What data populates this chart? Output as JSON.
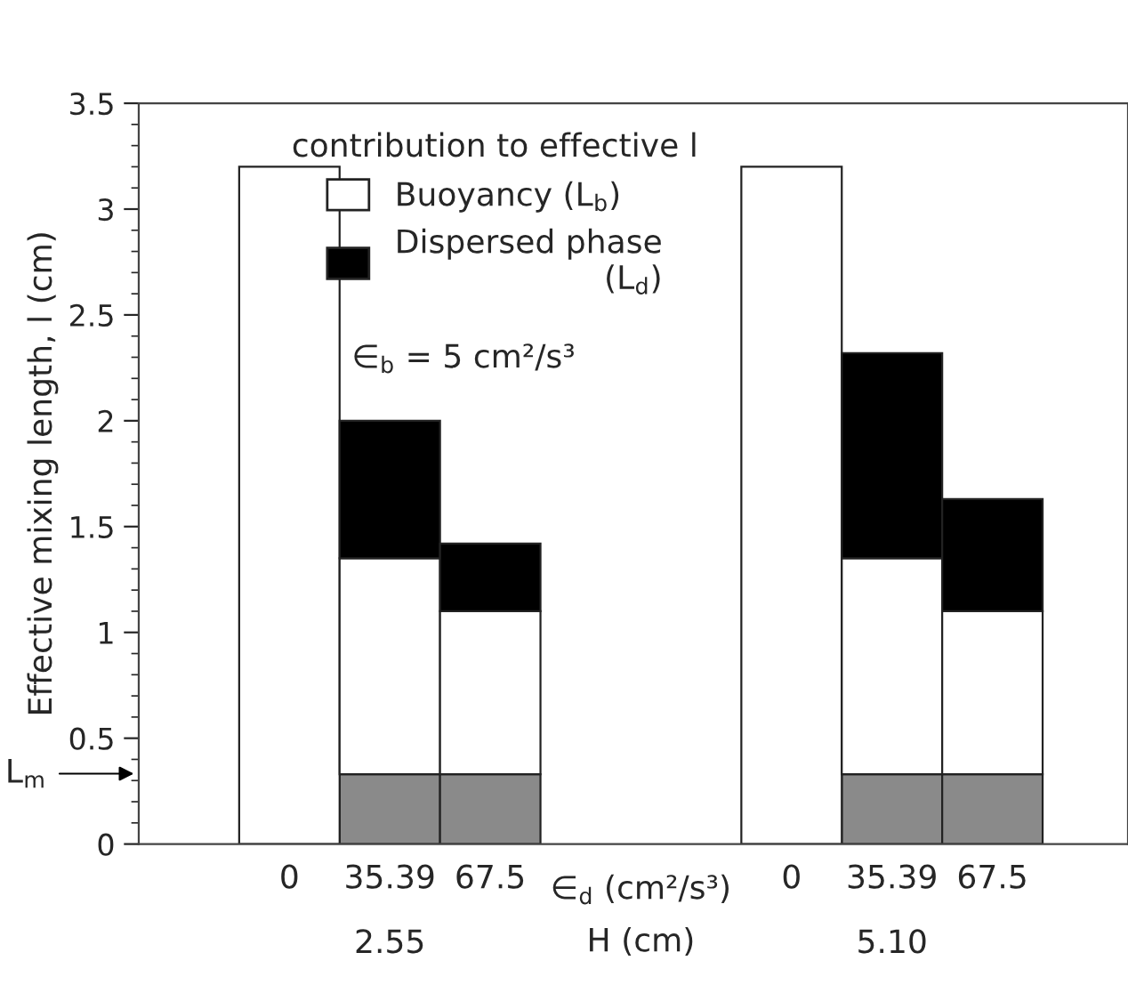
{
  "chart_data": {
    "type": "bar",
    "stacked": true,
    "ylabel": "Effective mixing length, l (cm)",
    "xlabel": "H (cm)",
    "legend_title": "contribution to effective l",
    "categories": [
      "0",
      "35.39",
      "67.5",
      null,
      null,
      "0",
      "35.39",
      "67.5"
    ],
    "series": [
      {
        "color": "#8a8a8a",
        "values": [
          null,
          0.33,
          0.33,
          null,
          null,
          null,
          0.33,
          0.33
        ]
      },
      {
        "name": "Buoyancy (L$_{b}$)",
        "color": "#ffffff",
        "values": [
          3.2,
          1.02,
          0.77,
          null,
          null,
          3.2,
          1.02,
          0.77
        ]
      },
      {
        "name": "Dispersed phase\n(L$_{d}$)",
        "color": "#000000",
        "values": [
          null,
          0.65,
          0.32,
          null,
          null,
          null,
          0.97,
          0.53
        ]
      }
    ],
    "ylim": [
      0,
      3.5
    ],
    "yticks": [
      0,
      0.5,
      1,
      1.5,
      2,
      2.5,
      3,
      3.5
    ],
    "legend": "top",
    "grid": false,
    "annotations": [
      "∈$_{b}$ = 5 cm²/s³",
      "∈$_{d}$ (cm²/s³)",
      "2.55",
      "5.10",
      "L$_{m}$"
    ]
  }
}
